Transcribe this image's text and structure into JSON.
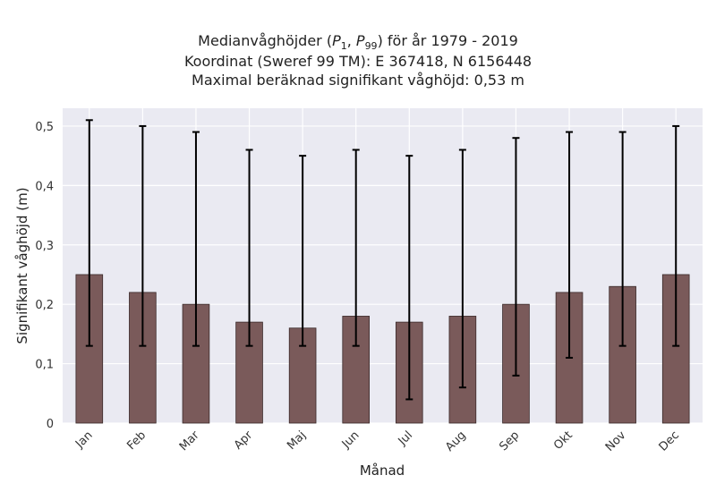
{
  "title_lines": [
    "Medianvåghöjder (P1, P99) för år 1979 - 2019",
    "Koordinat (Sweref 99 TM): E 367418, N 6156448",
    "Maximal beräknad signifikant våghöjd: 0,53 m"
  ],
  "chart_data": {
    "type": "bar",
    "title": "Medianvåghöjder (P1, P99) för år 1979 - 2019",
    "xlabel": "Månad",
    "ylabel": "Signifikant våghöjd (m)",
    "categories": [
      "Jan",
      "Feb",
      "Mar",
      "Apr",
      "Maj",
      "Jun",
      "Jul",
      "Aug",
      "Sep",
      "Okt",
      "Nov",
      "Dec"
    ],
    "values": [
      0.25,
      0.22,
      0.2,
      0.17,
      0.16,
      0.18,
      0.17,
      0.18,
      0.2,
      0.22,
      0.23,
      0.25
    ],
    "p1": [
      0.13,
      0.13,
      0.13,
      0.13,
      0.13,
      0.13,
      0.04,
      0.06,
      0.08,
      0.11,
      0.13,
      0.13
    ],
    "p99": [
      0.51,
      0.5,
      0.49,
      0.46,
      0.45,
      0.46,
      0.45,
      0.46,
      0.48,
      0.49,
      0.49,
      0.5
    ],
    "ylim": [
      0,
      0.53
    ],
    "yticks": [
      0,
      0.1,
      0.2,
      0.3,
      0.4,
      0.5
    ],
    "ytick_labels": [
      "0",
      "0,1",
      "0,2",
      "0,3",
      "0,4",
      "0,5"
    ],
    "grid": true,
    "colors": {
      "bar": "#7a5a5a",
      "bar_edge": "#3a2a2a",
      "errorbar": "#000000",
      "plot_bg": "#eaeaf2",
      "grid": "#ffffff"
    }
  }
}
